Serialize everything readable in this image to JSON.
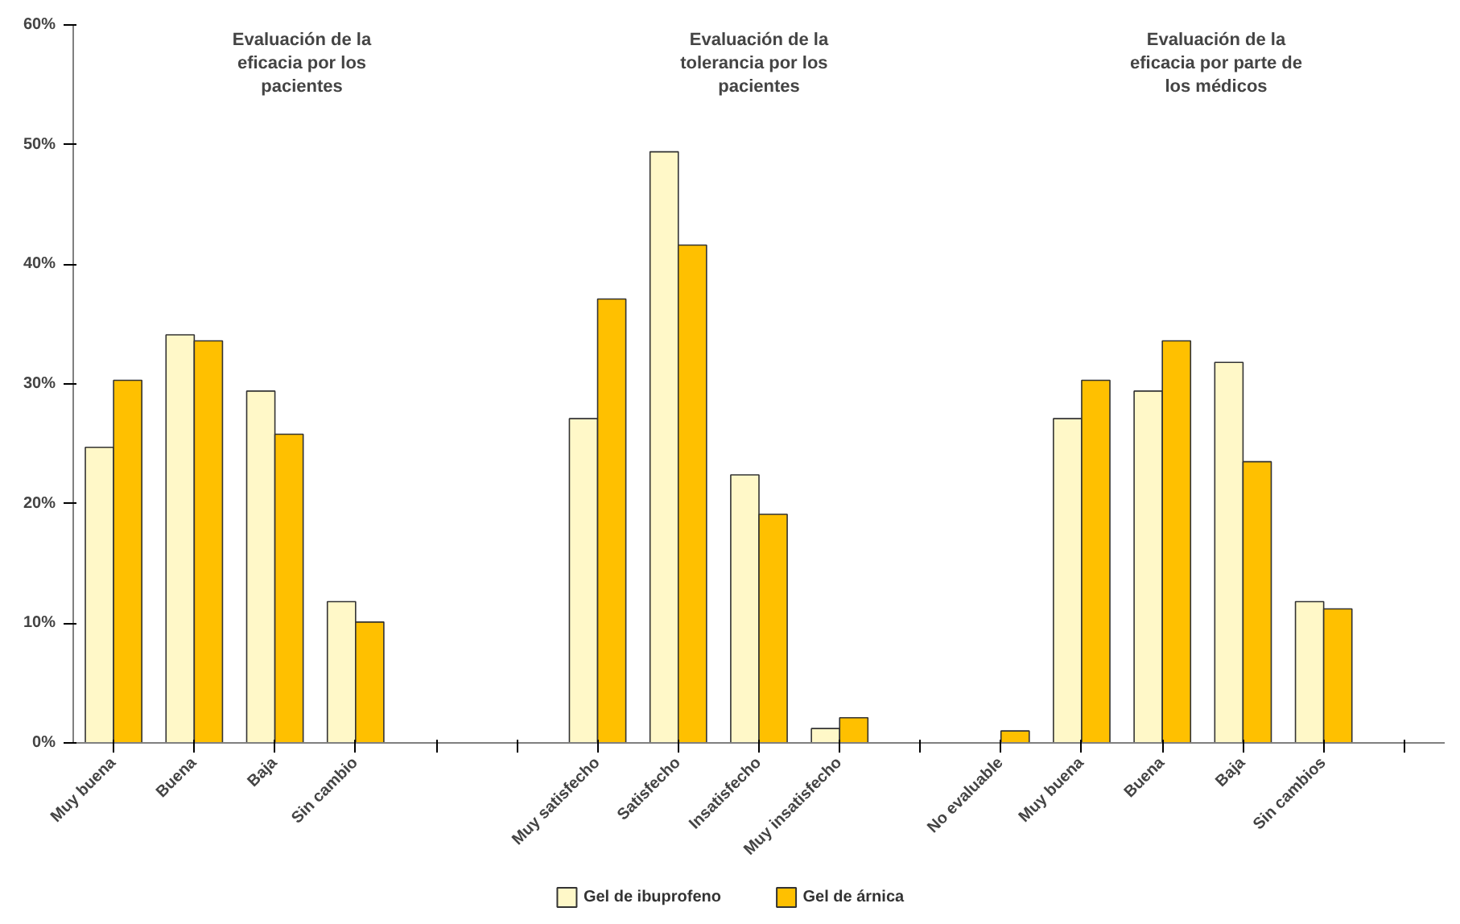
{
  "chart_data": {
    "type": "bar",
    "categories": [
      "Muy buena",
      "Buena",
      "Baja",
      "Sin cambio",
      null,
      null,
      "Muy satisfecho",
      "Satisfecho",
      "Insatisfecho",
      "Muy insatisfecho",
      null,
      "No evaluable",
      "Muy buena",
      "Buena",
      "Baja",
      "Sin cambios",
      null
    ],
    "series": [
      {
        "name": "Gel de ibuprofeno",
        "color": "#fff8c8",
        "values": [
          24.7,
          34.1,
          29.4,
          11.8,
          null,
          null,
          27.1,
          49.4,
          22.4,
          1.2,
          null,
          0,
          27.1,
          29.4,
          31.8,
          11.8,
          null
        ]
      },
      {
        "name": "Gel de árnica",
        "color": "#ffc000",
        "values": [
          30.3,
          33.6,
          25.8,
          10.1,
          null,
          null,
          37.1,
          41.6,
          19.1,
          2.1,
          null,
          1.0,
          30.3,
          33.6,
          23.5,
          11.2,
          null
        ]
      }
    ],
    "ylim": [
      0,
      60
    ],
    "yticks": [
      {
        "value": 0,
        "label": "0%"
      },
      {
        "value": 10,
        "label": "10%"
      },
      {
        "value": 20,
        "label": "20%"
      },
      {
        "value": 30,
        "label": "30%"
      },
      {
        "value": 40,
        "label": "40%"
      },
      {
        "value": 50,
        "label": "50%"
      },
      {
        "value": 60,
        "label": "60%"
      }
    ],
    "annotations": [
      "Evaluación de la\neficacia por los\npacientes",
      "Evaluación de la\ntolerancia  por  los\npacientes",
      "Evaluación de la\neficacia por parte de\nlos médicos"
    ],
    "grid": false,
    "legend": "bottom"
  }
}
